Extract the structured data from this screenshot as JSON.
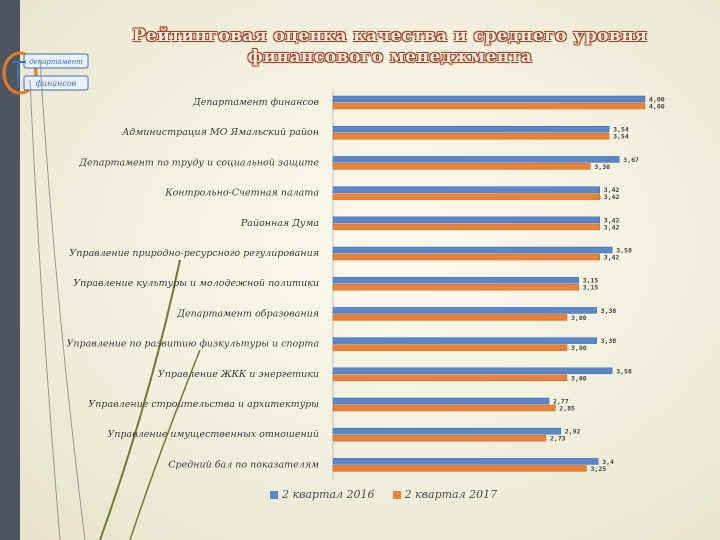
{
  "title": {
    "line1": "Рейтинговая оценка качества и среднего уровня",
    "line2": "финансового менеджмента"
  },
  "logo": {
    "text_top": "департамент",
    "text_bottom": "финансов"
  },
  "colors": {
    "series_2016": "#5b87c9",
    "series_2017": "#e8823a",
    "title_outline": "#a0442a",
    "left_band": "#4c5560"
  },
  "chart_data": {
    "type": "bar",
    "orientation": "horizontal",
    "categories": [
      "Департамент финансов",
      "Администрация МО Ямальский район",
      "Департамент по труду и социальной защите",
      "Контрольно-Счетная палата",
      "Районная Дума",
      "Управление природно-ресурсного регулирования",
      "Управление культуры и молодежной политики",
      "Департамент образования",
      "Управление по развитию физкультуры и спорта",
      "Управление ЖКК и энергетики",
      "Управление строительства и архитектуры",
      "Управление имущественных отношений",
      "Средний бал по показателям"
    ],
    "series": [
      {
        "name": "2 квартал 2016",
        "values": [
          4.0,
          3.54,
          3.67,
          3.42,
          3.42,
          3.58,
          3.15,
          3.38,
          3.38,
          3.58,
          2.77,
          2.92,
          3.4
        ],
        "labels": [
          "4,00",
          "3,54",
          "3,67",
          "3,42",
          "3,42",
          "3,58",
          "3,15",
          "3,38",
          "3,38",
          "3,58",
          "2,77",
          "2,92",
          "3,4"
        ]
      },
      {
        "name": "2 квартал 2017",
        "values": [
          4.0,
          3.54,
          3.3,
          3.42,
          3.42,
          3.42,
          3.15,
          3.0,
          3.0,
          3.0,
          2.85,
          2.73,
          3.25
        ],
        "labels": [
          "4,00",
          "3,54",
          "3,30",
          "3,42",
          "3,42",
          "3,42",
          "3,15",
          "3,00",
          "3,00",
          "3,00",
          "2,85",
          "2,73",
          "3,25"
        ]
      }
    ],
    "xlim": [
      0,
      4
    ],
    "grid": false,
    "legend_position": "bottom"
  }
}
